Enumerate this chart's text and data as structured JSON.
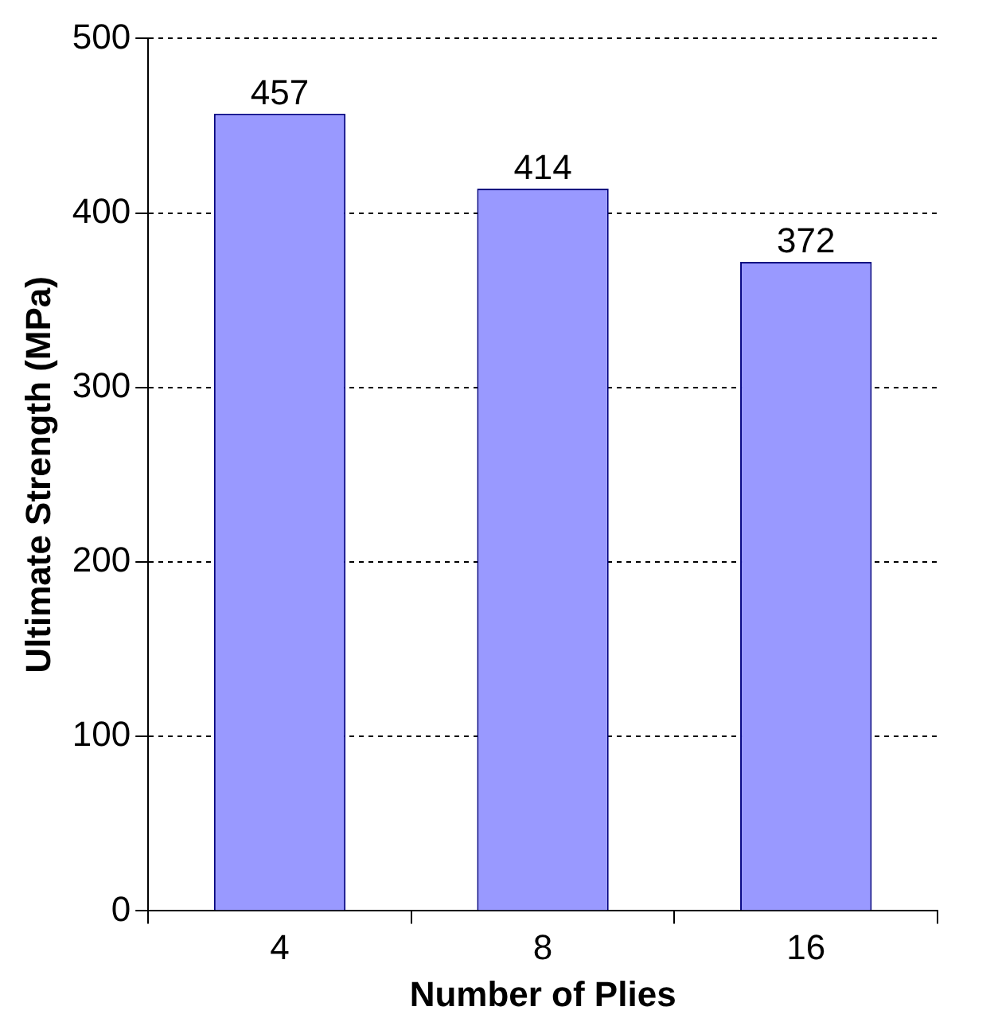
{
  "chart_data": {
    "type": "bar",
    "xlabel": "Number of Plies",
    "ylabel": "Ultimate Strength (MPa)",
    "categories": [
      "4",
      "8",
      "16"
    ],
    "values": [
      457,
      414,
      372
    ],
    "color": "#9999ff",
    "ylim": [
      0,
      500
    ],
    "yticks": [
      0,
      100,
      200,
      300,
      400,
      500
    ],
    "grid": "y",
    "legend": false,
    "data_labels": true
  }
}
